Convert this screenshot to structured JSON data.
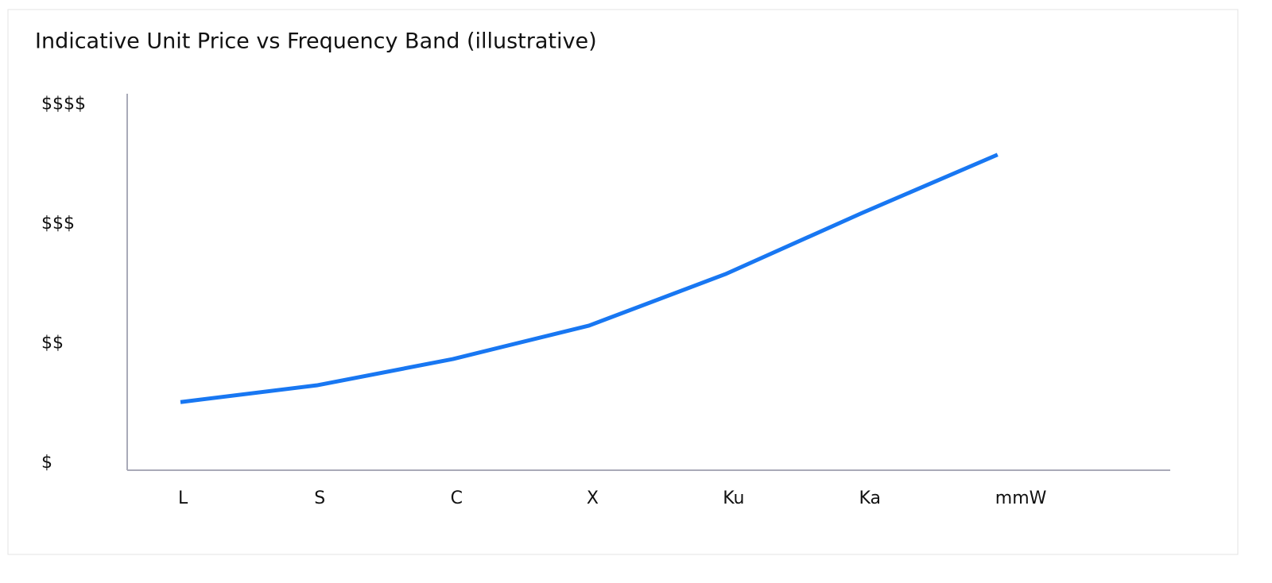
{
  "chart_data": {
    "type": "line",
    "title": "Indicative Unit Price vs Frequency Band (illustrative)",
    "categories": [
      "L",
      "S",
      "C",
      "X",
      "Ku",
      "Ka",
      "mmW"
    ],
    "series": [
      {
        "color": "#1877f2",
        "values": [
          1.51,
          1.65,
          1.87,
          2.15,
          2.58,
          3.09,
          3.58
        ]
      }
    ],
    "ylim": [
      0.94,
      4.09
    ],
    "yticks": [
      {
        "value": 1,
        "label": "$"
      },
      {
        "value": 2,
        "label": "$$"
      },
      {
        "value": 3,
        "label": "$$$"
      },
      {
        "value": 4,
        "label": "$$$$"
      }
    ]
  }
}
